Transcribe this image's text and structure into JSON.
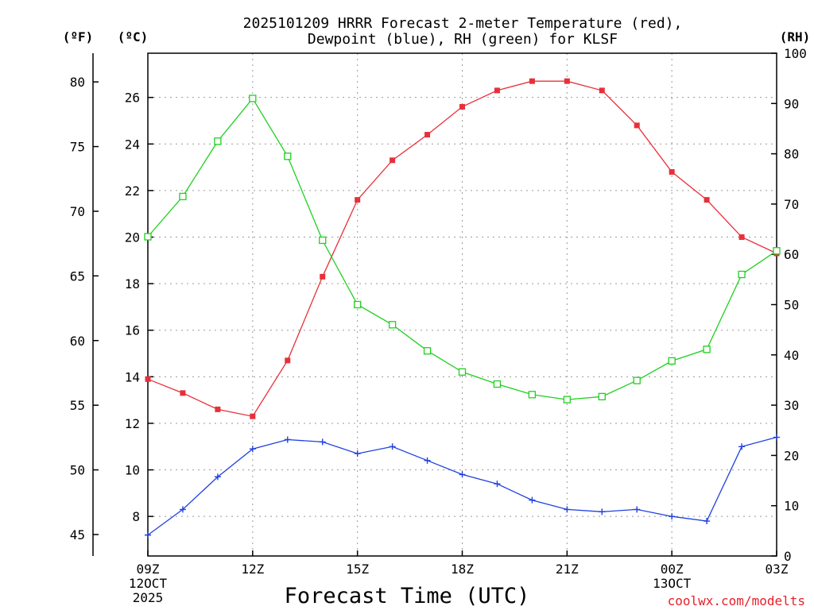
{
  "chart_data": {
    "type": "line",
    "title": [
      "2025101209 HRRR Forecast 2-meter Temperature (red),",
      "Dewpoint (blue), RH (green) for KLSF"
    ],
    "xlabel": "Forecast Time (UTC)",
    "credit": "coolwx.com/modelts",
    "units": {
      "fahrenheit": "(ºF)",
      "celsius": "(ºC)",
      "rh": "(RH)"
    },
    "x_hours": [
      0,
      1,
      2,
      3,
      4,
      5,
      6,
      7,
      8,
      9,
      10,
      11,
      12,
      13,
      14,
      15,
      16,
      17,
      18
    ],
    "xlim": [
      0,
      18
    ],
    "x_ticks": [
      {
        "hour": 0,
        "lines": [
          "09Z",
          "12OCT",
          "2025"
        ]
      },
      {
        "hour": 3,
        "lines": [
          "12Z"
        ]
      },
      {
        "hour": 6,
        "lines": [
          "15Z"
        ]
      },
      {
        "hour": 9,
        "lines": [
          "18Z"
        ]
      },
      {
        "hour": 12,
        "lines": [
          "21Z"
        ]
      },
      {
        "hour": 15,
        "lines": [
          "00Z",
          "13OCT"
        ]
      },
      {
        "hour": 18,
        "lines": [
          "03Z"
        ]
      }
    ],
    "celsius_axis": {
      "ylim": [
        6.3,
        27.9
      ],
      "ticks": [
        8,
        10,
        12,
        14,
        16,
        18,
        20,
        22,
        24,
        26
      ]
    },
    "fahrenheit_axis": {
      "ticks": [
        45,
        50,
        55,
        60,
        65,
        70,
        75,
        80
      ]
    },
    "rh_axis": {
      "ylim": [
        0,
        100
      ],
      "ticks": [
        0,
        10,
        20,
        30,
        40,
        50,
        60,
        70,
        80,
        90,
        100
      ]
    },
    "series": [
      {
        "name": "Temperature",
        "axis": "celsius",
        "color": "#e8303a",
        "marker": "filled-square",
        "values": [
          13.9,
          13.3,
          12.6,
          12.3,
          14.7,
          18.3,
          21.6,
          23.3,
          24.4,
          25.6,
          26.3,
          26.7,
          26.7,
          26.3,
          24.8,
          22.8,
          21.6,
          20.0,
          19.3
        ]
      },
      {
        "name": "Dewpoint",
        "axis": "celsius",
        "color": "#2040e0",
        "marker": "plus",
        "values": [
          7.2,
          8.3,
          9.7,
          10.9,
          11.3,
          11.2,
          10.7,
          11.0,
          10.4,
          9.8,
          9.4,
          8.7,
          8.3,
          8.2,
          8.3,
          8.0,
          7.8,
          11.0,
          11.4
        ]
      },
      {
        "name": "RH",
        "axis": "rh",
        "color": "#20d020",
        "marker": "open-square",
        "values": [
          63.5,
          71.5,
          82.5,
          91,
          79.5,
          62.8,
          50,
          46,
          40.8,
          36.6,
          34.2,
          32.1,
          31.1,
          31.7,
          34.9,
          38.8,
          41.1,
          56,
          60.7
        ]
      }
    ]
  }
}
